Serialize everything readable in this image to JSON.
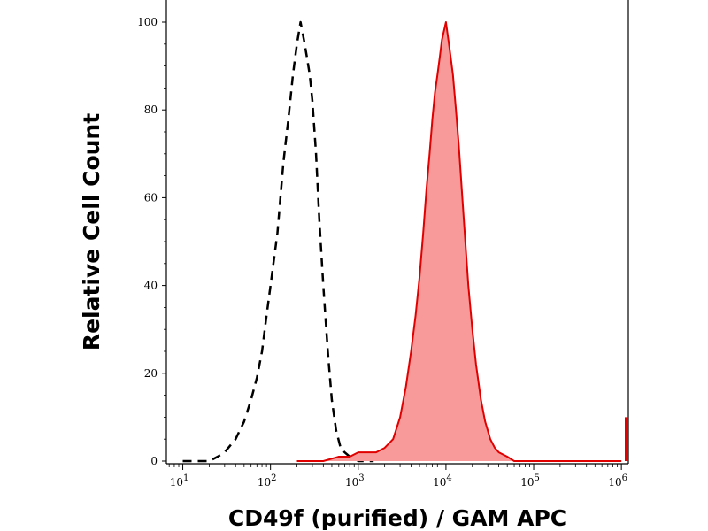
{
  "chart_data": {
    "type": "area",
    "xlabel": "CD49f (purified) / GAM APC",
    "ylabel": "Relative Cell Count",
    "x_scale": "log",
    "xlim": [
      6.5,
      1200000
    ],
    "ylim": [
      0,
      100
    ],
    "x_ticks": [
      {
        "value": 10,
        "base": "10",
        "exp": "1"
      },
      {
        "value": 100,
        "base": "10",
        "exp": "2"
      },
      {
        "value": 1000,
        "base": "10",
        "exp": "3"
      },
      {
        "value": 10000,
        "base": "10",
        "exp": "4"
      },
      {
        "value": 100000,
        "base": "10",
        "exp": "5"
      },
      {
        "value": 1000000,
        "base": "10",
        "exp": "6"
      }
    ],
    "y_ticks": [
      {
        "value": 0,
        "label": "0"
      },
      {
        "value": 20,
        "label": "20"
      },
      {
        "value": 40,
        "label": "40"
      },
      {
        "value": 60,
        "label": "60"
      },
      {
        "value": 80,
        "label": "80"
      },
      {
        "value": 100,
        "label": "100"
      }
    ],
    "grid": false,
    "series": [
      {
        "style": "dashed-outline",
        "color": "#000000",
        "x": [
          10,
          15,
          20,
          25,
          30,
          40,
          50,
          60,
          70,
          80,
          90,
          100,
          120,
          140,
          160,
          180,
          200,
          220,
          240,
          260,
          280,
          300,
          330,
          360,
          400,
          450,
          500,
          560,
          630,
          700,
          800,
          900,
          1000,
          1200,
          1500
        ],
        "y": [
          0,
          0,
          0,
          1,
          2,
          5,
          9,
          14,
          19,
          25,
          33,
          40,
          52,
          68,
          78,
          88,
          95,
          100,
          96,
          92,
          88,
          82,
          70,
          55,
          40,
          25,
          14,
          7,
          3,
          2,
          1,
          1,
          0,
          0,
          0
        ]
      },
      {
        "style": "filled",
        "color": "#e00000",
        "fill": "#f99a9a",
        "x": [
          200,
          400,
          600,
          800,
          1000,
          1300,
          1600,
          2000,
          2500,
          3000,
          3500,
          4000,
          4500,
          5000,
          5500,
          6000,
          6500,
          7000,
          7500,
          8000,
          8500,
          9000,
          10000,
          11000,
          12000,
          13000,
          14000,
          15000,
          16000,
          17000,
          18000,
          20000,
          22000,
          25000,
          28000,
          32000,
          36000,
          40000,
          50000,
          60000,
          80000,
          100000,
          200000,
          500000,
          1000000
        ],
        "y": [
          0,
          0,
          1,
          1,
          2,
          2,
          2,
          3,
          5,
          10,
          17,
          25,
          33,
          42,
          52,
          62,
          70,
          78,
          84,
          88,
          92,
          96,
          100,
          94,
          88,
          80,
          72,
          63,
          55,
          47,
          40,
          30,
          22,
          14,
          9,
          5,
          3,
          2,
          1,
          0,
          0,
          0,
          0,
          0,
          0
        ]
      }
    ],
    "annotations": [
      {
        "type": "bar",
        "color": "#e00000",
        "x": 1100000,
        "y": 10
      }
    ]
  }
}
